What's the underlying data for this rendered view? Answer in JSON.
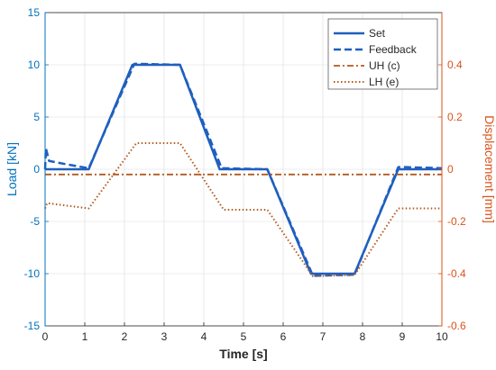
{
  "chart_data": {
    "type": "line",
    "xlabel": "Time [s]",
    "ylabel_left": "Load [kN]",
    "ylabel_right": "Displacement [mm]",
    "xlim": [
      0,
      10
    ],
    "ylim_left": [
      -15,
      15
    ],
    "ylim_right": [
      -0.6,
      0.6
    ],
    "xticks": [
      "0",
      "1",
      "2",
      "3",
      "4",
      "5",
      "6",
      "7",
      "8",
      "9",
      "10"
    ],
    "yticks_left": [
      "-15",
      "-10",
      "-5",
      "0",
      "5",
      "10",
      "15"
    ],
    "yticks_right": [
      "-0.6",
      "-0.4",
      "-0.2",
      "0",
      "0.2",
      "0.4"
    ],
    "grid": true,
    "legend_position": "top-right",
    "colors": {
      "left_axis": "#0072BD",
      "right_axis": "#D95319",
      "load_series": "#1F5FBF",
      "displacement_series": "#B35A1F"
    },
    "series": [
      {
        "name": "Set",
        "axis": "left",
        "style": "solid",
        "x": [
          0,
          1.1,
          2.2,
          3.4,
          4.4,
          5.6,
          6.7,
          7.8,
          8.9,
          10
        ],
        "y": [
          0,
          0,
          10,
          10,
          0,
          0,
          -10,
          -10,
          0,
          0
        ]
      },
      {
        "name": "Feedback",
        "axis": "left",
        "style": "dashed",
        "x": [
          0,
          0.02,
          0.1,
          0.5,
          1.1,
          2.25,
          3.4,
          4.45,
          5.6,
          6.75,
          7.8,
          8.9,
          9.1,
          10
        ],
        "y": [
          0,
          2.0,
          0.8,
          0.5,
          0.1,
          10.1,
          10.0,
          0.1,
          0.0,
          -10.2,
          -10.1,
          0.2,
          0.2,
          0.1
        ]
      },
      {
        "name": "UH (c)",
        "axis": "right",
        "style": "dashdot",
        "x": [
          0,
          10
        ],
        "y": [
          -0.02,
          -0.02
        ]
      },
      {
        "name": "LH (e)",
        "axis": "right",
        "style": "dotted",
        "x": [
          0,
          0.05,
          1.1,
          2.3,
          3.4,
          4.5,
          5.6,
          6.75,
          7.8,
          8.9,
          10
        ],
        "y": [
          -0.15,
          -0.13,
          -0.15,
          0.1,
          0.1,
          -0.155,
          -0.155,
          -0.41,
          -0.405,
          -0.15,
          -0.15
        ]
      }
    ]
  }
}
